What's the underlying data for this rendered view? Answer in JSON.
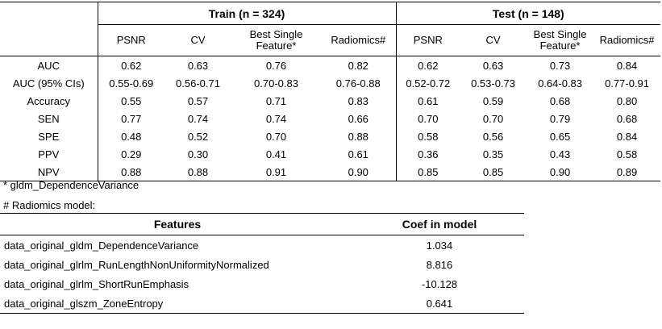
{
  "metrics_table": {
    "train_header": "Train (n = 324)",
    "test_header": "Test (n = 148)",
    "columns": [
      "PSNR",
      "CV",
      "Best Single Feature*",
      "Radiomics#"
    ],
    "rows": [
      {
        "label": "AUC",
        "train": [
          "0.62",
          "0.63",
          "0.76",
          "0.82"
        ],
        "test": [
          "0.62",
          "0.63",
          "0.73",
          "0.84"
        ]
      },
      {
        "label": "AUC (95% CIs)",
        "train": [
          "0.55-0.69",
          "0.56-0.71",
          "0.70-0.83",
          "0.76-0.88"
        ],
        "test": [
          "0.52-0.72",
          "0.53-0.73",
          "0.64-0.83",
          "0.77-0.91"
        ]
      },
      {
        "label": "Accuracy",
        "train": [
          "0.55",
          "0.57",
          "0.71",
          "0.83"
        ],
        "test": [
          "0.61",
          "0.59",
          "0.68",
          "0.80"
        ]
      },
      {
        "label": "SEN",
        "train": [
          "0.77",
          "0.74",
          "0.74",
          "0.66"
        ],
        "test": [
          "0.70",
          "0.70",
          "0.79",
          "0.68"
        ]
      },
      {
        "label": "SPE",
        "train": [
          "0.48",
          "0.52",
          "0.70",
          "0.88"
        ],
        "test": [
          "0.58",
          "0.56",
          "0.65",
          "0.84"
        ]
      },
      {
        "label": "PPV",
        "train": [
          "0.29",
          "0.30",
          "0.41",
          "0.61"
        ],
        "test": [
          "0.36",
          "0.35",
          "0.43",
          "0.58"
        ]
      },
      {
        "label": "NPV",
        "train": [
          "0.88",
          "0.88",
          "0.91",
          "0.90"
        ],
        "test": [
          "0.85",
          "0.85",
          "0.90",
          "0.89"
        ]
      }
    ]
  },
  "notes": {
    "best_single": "* gldm_DependenceVariance",
    "radiomics": "# Radiomics model:"
  },
  "features_table": {
    "headers": {
      "features": "Features",
      "coef": "Coef in model"
    },
    "rows": [
      {
        "feature": "data_original_gldm_DependenceVariance",
        "coef": "1.034"
      },
      {
        "feature": "data_original_glrlm_RunLengthNonUniformityNormalized",
        "coef": "8.816"
      },
      {
        "feature": "data_original_glrlm_ShortRunEmphasis",
        "coef": "-10.128"
      },
      {
        "feature": "data_original_glszm_ZoneEntropy",
        "coef": "0.641"
      }
    ]
  }
}
